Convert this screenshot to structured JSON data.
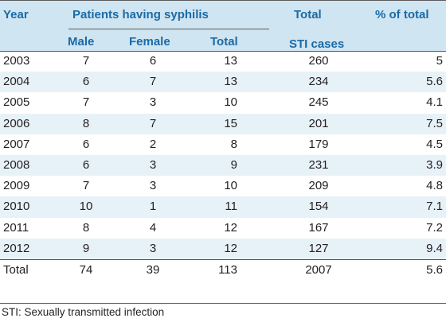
{
  "header": {
    "year": "Year",
    "group": "Patients having syphilis",
    "male": "Male",
    "female": "Female",
    "total": "Total",
    "sti_line1": "Total",
    "sti_line2": "STI cases",
    "percent": "% of total"
  },
  "rows": [
    {
      "year": "2003",
      "male": "7",
      "female": "6",
      "total": "13",
      "sti": "260",
      "pct": "5"
    },
    {
      "year": "2004",
      "male": "6",
      "female": "7",
      "total": "13",
      "sti": "234",
      "pct": "5.6"
    },
    {
      "year": "2005",
      "male": "7",
      "female": "3",
      "total": "10",
      "sti": "245",
      "pct": "4.1"
    },
    {
      "year": "2006",
      "male": "8",
      "female": "7",
      "total": "15",
      "sti": "201",
      "pct": "7.5"
    },
    {
      "year": "2007",
      "male": "6",
      "female": "2",
      "total": "8",
      "sti": "179",
      "pct": "4.5"
    },
    {
      "year": "2008",
      "male": "6",
      "female": "3",
      "total": "9",
      "sti": "231",
      "pct": "3.9"
    },
    {
      "year": "2009",
      "male": "7",
      "female": "3",
      "total": "10",
      "sti": "209",
      "pct": "4.8"
    },
    {
      "year": "2010",
      "male": "10",
      "female": "1",
      "total": "11",
      "sti": "154",
      "pct": "7.1"
    },
    {
      "year": "2011",
      "male": "8",
      "female": "4",
      "total": "12",
      "sti": "167",
      "pct": "7.2"
    },
    {
      "year": "2012",
      "male": "9",
      "female": "3",
      "total": "12",
      "sti": "127",
      "pct": "9.4"
    },
    {
      "year": "Total",
      "male": "74",
      "female": "39",
      "total": "113",
      "sti": "2007",
      "pct": "5.6"
    }
  ],
  "footnote": "STI: Sexually transmitted infection",
  "colors": {
    "header_text": "#1b6aa6",
    "header_bg": "#cfe5f1",
    "stripe_bg": "#e7f2f8"
  }
}
